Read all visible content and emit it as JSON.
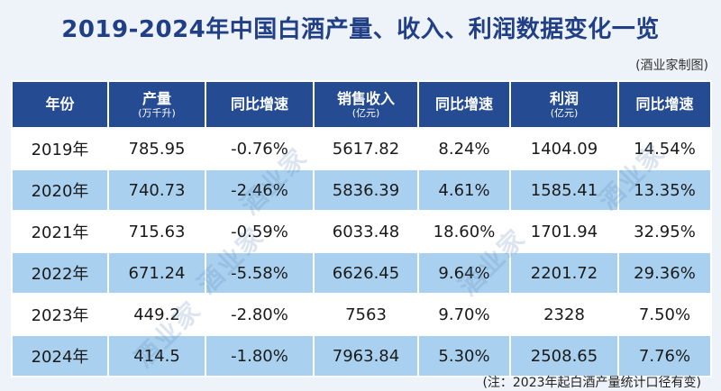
{
  "title": "2019-2024年中国白酒产量、收入、利润数据变化一览",
  "credit": "(酒业家制图)",
  "headers": [
    {
      "label": "年份",
      "sub": ""
    },
    {
      "label": "产量",
      "sub": "(万千升)"
    },
    {
      "label": "同比增速",
      "sub": ""
    },
    {
      "label": "销售收入",
      "sub": "(亿元)"
    },
    {
      "label": "同比增速",
      "sub": ""
    },
    {
      "label": "利润",
      "sub": "(亿元)"
    },
    {
      "label": "同比增速",
      "sub": ""
    }
  ],
  "rows": [
    [
      "2019年",
      "785.95",
      "-0.76%",
      "5617.82",
      "8.24%",
      "1404.09",
      "14.54%"
    ],
    [
      "2020年",
      "740.73",
      "-2.46%",
      "5836.39",
      "4.61%",
      "1585.41",
      "13.35%"
    ],
    [
      "2021年",
      "715.63",
      "-0.59%",
      "6033.48",
      "18.60%",
      "1701.94",
      "32.95%"
    ],
    [
      "2022年",
      "671.24",
      "-5.58%",
      "6626.45",
      "9.64%",
      "2201.72",
      "29.36%"
    ],
    [
      "2023年",
      "449.2",
      "-2.80%",
      "7563",
      "9.70%",
      "2328",
      "7.50%"
    ],
    [
      "2024年",
      "414.5",
      "-1.80%",
      "7963.84",
      "5.30%",
      "2508.65",
      "7.76%"
    ]
  ],
  "note": "(注：2023年起白酒产量统计口径有变)",
  "watermark": "酒业家",
  "colors": {
    "title": "#213f86",
    "header_bg": "#254b92",
    "row_light": "#ffffff",
    "row_blue": "#a9d1ef"
  }
}
